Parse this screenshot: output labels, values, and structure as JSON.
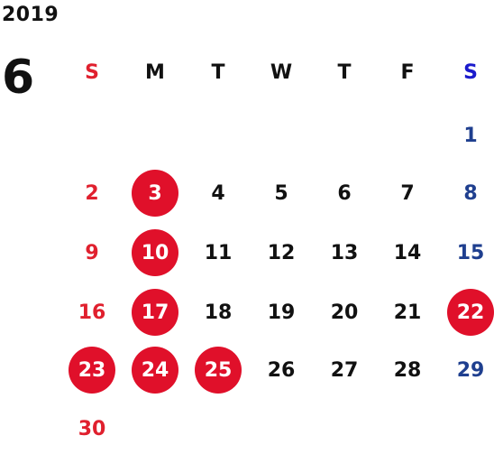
{
  "calendar": {
    "year": "2019",
    "month": "6",
    "weekdays": [
      "S",
      "M",
      "T",
      "W",
      "T",
      "F",
      "S"
    ],
    "first_weekday_index": 6,
    "days": [
      "1",
      "2",
      "3",
      "4",
      "5",
      "6",
      "7",
      "8",
      "9",
      "10",
      "11",
      "12",
      "13",
      "14",
      "15",
      "16",
      "17",
      "18",
      "19",
      "20",
      "21",
      "22",
      "23",
      "24",
      "25",
      "26",
      "27",
      "28",
      "29",
      "30"
    ],
    "highlighted_days": [
      "3",
      "10",
      "17",
      "22",
      "23",
      "24",
      "25"
    ],
    "colors": {
      "sunday": "#e0202e",
      "saturday_header": "#1a1acc",
      "saturday": "#1f3f8f",
      "weekday": "#111111",
      "highlight": "#e0102a"
    }
  }
}
